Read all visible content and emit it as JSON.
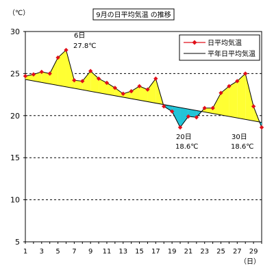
{
  "chart_data": {
    "type": "line",
    "title": "9月の日平均気温 の推移",
    "ylabel": "（℃）",
    "xlabel": "（日）",
    "ylim": [
      5,
      30
    ],
    "xlim": [
      1,
      30
    ],
    "yticks": [
      5,
      10,
      15,
      20,
      25,
      30
    ],
    "xticks": [
      1,
      3,
      5,
      7,
      9,
      11,
      13,
      15,
      17,
      19,
      21,
      23,
      25,
      27,
      29
    ],
    "grid": "horizontal-dashed",
    "legend_position": "top-right",
    "series": [
      {
        "name": "日平均気温",
        "color": "#e0101a",
        "marker": "diamond",
        "x": [
          1,
          2,
          3,
          4,
          5,
          6,
          7,
          8,
          9,
          10,
          11,
          12,
          13,
          14,
          15,
          16,
          17,
          18,
          19,
          20,
          21,
          22,
          23,
          24,
          25,
          26,
          27,
          28,
          29,
          30
        ],
        "values": [
          24.7,
          24.9,
          25.2,
          25.0,
          26.9,
          27.8,
          24.2,
          24.1,
          25.3,
          24.4,
          23.9,
          23.3,
          22.6,
          22.9,
          23.5,
          23.1,
          24.4,
          21.1,
          20.5,
          18.6,
          19.9,
          19.8,
          20.9,
          20.9,
          22.7,
          23.5,
          24.1,
          25.0,
          21.1,
          18.6
        ]
      },
      {
        "name": "平年日平均気温",
        "color": "#000000",
        "x": [
          1,
          30
        ],
        "values": [
          24.3,
          19.2
        ]
      }
    ],
    "fill_above_color": "#ffff33",
    "fill_below_color": "#22c4d8",
    "annotations": [
      {
        "day": "6日",
        "value": "27.8℃"
      },
      {
        "day": "20日",
        "value": "18.6℃"
      },
      {
        "day": "30日",
        "value": "18.6℃"
      }
    ]
  }
}
